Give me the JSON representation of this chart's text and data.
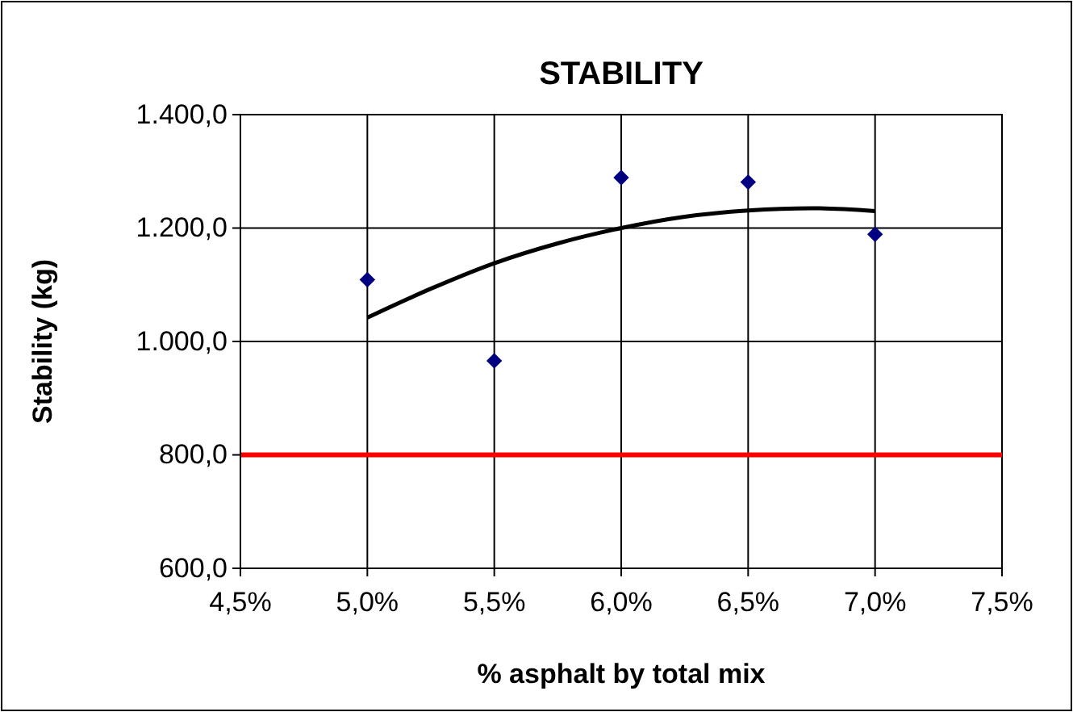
{
  "chart_data": {
    "type": "scatter",
    "title": "STABILITY",
    "xlabel": "% asphalt by total mix",
    "ylabel": "Stability (kg)",
    "series": [
      {
        "color": "#000080",
        "marker": "diamond",
        "x": [
          5.0,
          5.5,
          6.0,
          6.5,
          7.0
        ],
        "values": [
          1109,
          966,
          1289,
          1281,
          1189
        ]
      },
      {
        "type": "line",
        "color": "#000000",
        "marker": "none",
        "x": [
          5.0,
          5.25,
          5.5,
          5.75,
          6.0,
          6.25,
          6.5,
          6.75,
          7.0
        ],
        "values": [
          1042,
          1093,
          1138,
          1173,
          1200,
          1220,
          1231,
          1235,
          1230
        ]
      }
    ],
    "xlim": [
      4.5,
      7.5
    ],
    "ylim": [
      600,
      1400
    ],
    "xticks": [
      {
        "value": 4.5,
        "label": "4,5%"
      },
      {
        "value": 5.0,
        "label": "5,0%"
      },
      {
        "value": 5.5,
        "label": "5,5%"
      },
      {
        "value": 6.0,
        "label": "6,0%"
      },
      {
        "value": 6.5,
        "label": "6,5%"
      },
      {
        "value": 7.0,
        "label": "7,0%"
      },
      {
        "value": 7.5,
        "label": "7,5%"
      }
    ],
    "yticks": [
      {
        "value": 600,
        "label": "600,0"
      },
      {
        "value": 800,
        "label": "800,0"
      },
      {
        "value": 1000,
        "label": "1.000,0"
      },
      {
        "value": 1200,
        "label": "1.200,0"
      },
      {
        "value": 1400,
        "label": "1.400,0"
      }
    ],
    "grid": true,
    "ref_lines": [
      {
        "axis": "y",
        "value": 800,
        "color": "#ff0000"
      }
    ]
  }
}
